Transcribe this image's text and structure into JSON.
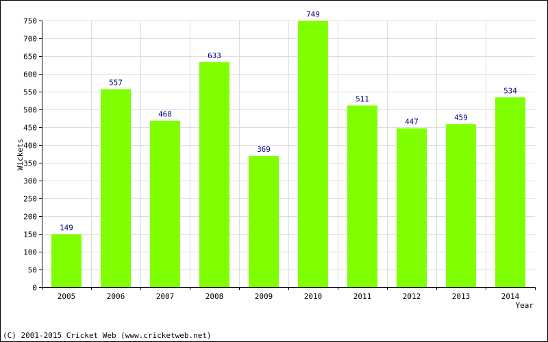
{
  "chart_data": {
    "type": "bar",
    "title": "",
    "xlabel": "Year",
    "ylabel": "Wickets",
    "categories": [
      "2005",
      "2006",
      "2007",
      "2008",
      "2009",
      "2010",
      "2011",
      "2012",
      "2013",
      "2014"
    ],
    "values": [
      149,
      557,
      468,
      633,
      369,
      749,
      511,
      447,
      459,
      534
    ],
    "data_labels": [
      "149",
      "557",
      "468",
      "633",
      "369",
      "749",
      "511",
      "447",
      "459",
      "534"
    ],
    "ylim": [
      0,
      750
    ],
    "y_ticks": [
      0,
      50,
      100,
      150,
      200,
      250,
      300,
      350,
      400,
      450,
      500,
      550,
      600,
      650,
      700,
      750
    ],
    "grid": true,
    "legend": "none",
    "bar_color": "#80ff00",
    "label_color": "#000080"
  },
  "footer": {
    "copyright": "(C) 2001-2015 Cricket Web (www.cricketweb.net)"
  }
}
